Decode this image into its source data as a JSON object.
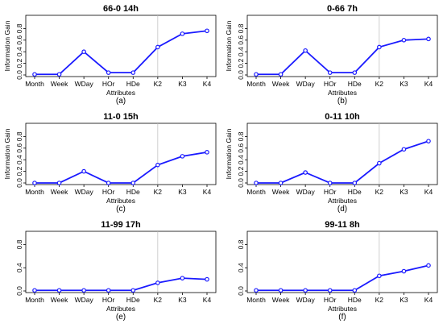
{
  "chart_data": [
    {
      "type": "line",
      "title": "66-0 14h",
      "subtitle": "(a)",
      "xlabel": "Attributes",
      "ylabel": "Information Gain",
      "categories": [
        "Month",
        "Week",
        "WDay",
        "HOr",
        "HDe",
        "K2",
        "K3",
        "K4"
      ],
      "values": [
        0.01,
        0.01,
        0.4,
        0.04,
        0.04,
        0.48,
        0.71,
        0.76
      ],
      "ylim": [
        0,
        1.0
      ],
      "yticks": [
        "0.0",
        "0.2",
        "0.4",
        "0.6",
        "0.8"
      ],
      "ytick_values": [
        0,
        0.2,
        0.4,
        0.6,
        0.8
      ],
      "color": "#1a1aff"
    },
    {
      "type": "line",
      "title": "0-66 7h",
      "subtitle": "(b)",
      "xlabel": "Attributes",
      "ylabel": "Information Gain",
      "categories": [
        "Month",
        "Week",
        "WDay",
        "HOr",
        "HDe",
        "K2",
        "K3",
        "K4"
      ],
      "values": [
        0.01,
        0.01,
        0.42,
        0.04,
        0.04,
        0.48,
        0.6,
        0.62
      ],
      "ylim": [
        0,
        1.0
      ],
      "yticks": [
        "0.0",
        "0.2",
        "0.4",
        "0.6",
        "0.8"
      ],
      "ytick_values": [
        0,
        0.2,
        0.4,
        0.6,
        0.8
      ],
      "color": "#1a1aff"
    },
    {
      "type": "line",
      "title": "11-0 15h",
      "subtitle": "(c)",
      "xlabel": "Attributes",
      "ylabel": "Information Gain",
      "categories": [
        "Month",
        "Week",
        "WDay",
        "HOr",
        "HDe",
        "K2",
        "K3",
        "K4"
      ],
      "values": [
        0.0,
        0.0,
        0.2,
        0.0,
        0.0,
        0.31,
        0.46,
        0.53
      ],
      "ylim": [
        0,
        1.0
      ],
      "yticks": [
        "0.0",
        "0.2",
        "0.4",
        "0.6",
        "0.8"
      ],
      "ytick_values": [
        0,
        0.2,
        0.4,
        0.6,
        0.8
      ],
      "color": "#1a1aff"
    },
    {
      "type": "line",
      "title": "0-11 10h",
      "subtitle": "(d)",
      "xlabel": "Attributes",
      "ylabel": "Information Gain",
      "categories": [
        "Month",
        "Week",
        "WDay",
        "HOr",
        "HDe",
        "K2",
        "K3",
        "K4"
      ],
      "values": [
        0.0,
        0.0,
        0.18,
        0.0,
        0.0,
        0.34,
        0.58,
        0.72
      ],
      "ylim": [
        0,
        1.0
      ],
      "yticks": [
        "0.0",
        "0.2",
        "0.4",
        "0.6",
        "0.8"
      ],
      "ytick_values": [
        0,
        0.2,
        0.4,
        0.6,
        0.8
      ],
      "color": "#1a1aff"
    },
    {
      "type": "line",
      "title": "11-99 17h",
      "subtitle": "(e)",
      "xlabel": "Attributes",
      "ylabel": "",
      "categories": [
        "Month",
        "Week",
        "WDay",
        "HOr",
        "HDe",
        "K2",
        "K3",
        "K4"
      ],
      "values": [
        0.01,
        0.01,
        0.01,
        0.01,
        0.01,
        0.14,
        0.22,
        0.2
      ],
      "ylim": [
        0,
        1.0
      ],
      "yticks": [
        "0.0",
        "0.4",
        "0.8"
      ],
      "ytick_values": [
        0,
        0.4,
        0.8
      ],
      "color": "#1a1aff"
    },
    {
      "type": "line",
      "title": "99-11 8h",
      "subtitle": "(f)",
      "xlabel": "Attributes",
      "ylabel": "",
      "categories": [
        "Month",
        "Week",
        "WDay",
        "HOr",
        "HDe",
        "K2",
        "K3",
        "K4"
      ],
      "values": [
        0.01,
        0.01,
        0.01,
        0.01,
        0.01,
        0.26,
        0.34,
        0.44
      ],
      "ylim": [
        0,
        1.0
      ],
      "yticks": [
        "0.0",
        "0.4",
        "0.8"
      ],
      "ytick_values": [
        0,
        0.4,
        0.8
      ],
      "color": "#1a1aff"
    }
  ]
}
